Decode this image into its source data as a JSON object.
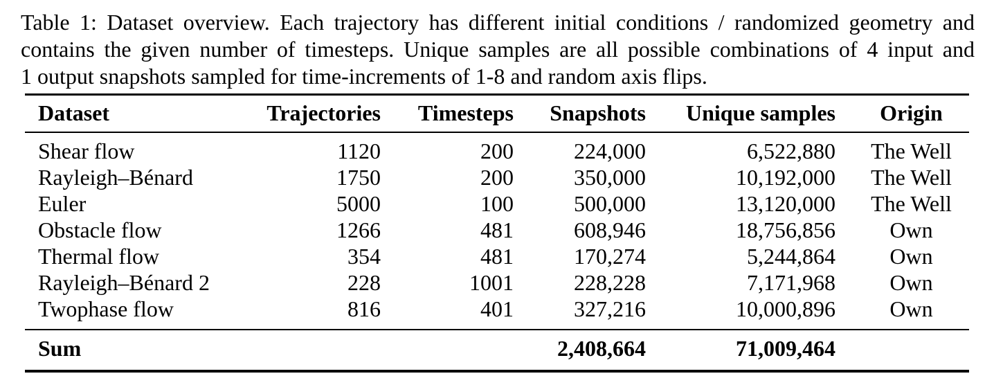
{
  "caption": {
    "lines": [
      "Table 1: Dataset overview. Each trajectory has different initial conditions / randomized geometry and",
      "contains the given number of timesteps. Unique samples are all possible combinations of 4 input and",
      "1 output snapshots sampled for time-increments of 1-8 and random axis flips."
    ]
  },
  "table": {
    "columns": [
      "Dataset",
      "Trajectories",
      "Timesteps",
      "Snapshots",
      "Unique samples",
      "Origin"
    ],
    "rows": [
      {
        "dataset": "Shear flow",
        "trajectories": "1120",
        "timesteps": "200",
        "snapshots": "224,000",
        "unique_samples": "6,522,880",
        "origin": "The Well"
      },
      {
        "dataset": "Rayleigh–Bénard",
        "trajectories": "1750",
        "timesteps": "200",
        "snapshots": "350,000",
        "unique_samples": "10,192,000",
        "origin": "The Well"
      },
      {
        "dataset": "Euler",
        "trajectories": "5000",
        "timesteps": "100",
        "snapshots": "500,000",
        "unique_samples": "13,120,000",
        "origin": "The Well"
      },
      {
        "dataset": "Obstacle flow",
        "trajectories": "1266",
        "timesteps": "481",
        "snapshots": "608,946",
        "unique_samples": "18,756,856",
        "origin": "Own"
      },
      {
        "dataset": "Thermal flow",
        "trajectories": "354",
        "timesteps": "481",
        "snapshots": "170,274",
        "unique_samples": "5,244,864",
        "origin": "Own"
      },
      {
        "dataset": "Rayleigh–Bénard 2",
        "trajectories": "228",
        "timesteps": "1001",
        "snapshots": "228,228",
        "unique_samples": "7,171,968",
        "origin": "Own"
      },
      {
        "dataset": "Twophase flow",
        "trajectories": "816",
        "timesteps": "401",
        "snapshots": "327,216",
        "unique_samples": "10,000,896",
        "origin": "Own"
      }
    ],
    "sum": {
      "label": "Sum",
      "trajectories": "",
      "timesteps": "",
      "snapshots": "2,408,664",
      "unique_samples": "71,009,464",
      "origin": ""
    }
  },
  "colors": {
    "text": "#000000",
    "background": "#ffffff",
    "rule": "#000000"
  }
}
